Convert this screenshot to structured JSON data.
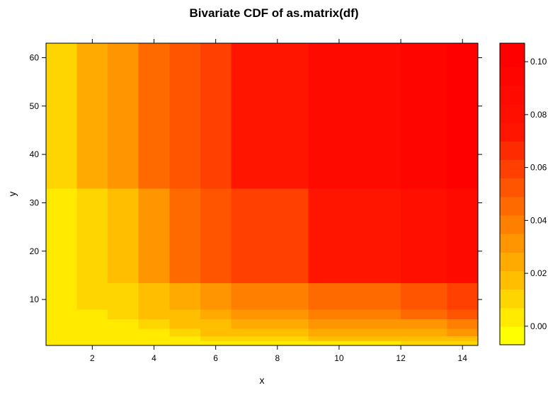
{
  "chart_data": {
    "type": "heatmap",
    "title": "Bivariate CDF of as.matrix(df)",
    "xlabel": "x",
    "ylabel": "y",
    "xlim": [
      0.5,
      14.5
    ],
    "ylim": [
      0.5,
      63
    ],
    "x_ticks": [
      2,
      4,
      6,
      8,
      10,
      12,
      14
    ],
    "y_ticks": [
      10,
      20,
      30,
      40,
      50,
      60
    ],
    "x_breaks": [
      0.5,
      1.5,
      2.5,
      3.5,
      4.5,
      5.5,
      6.5,
      9,
      12,
      13.5,
      14.5
    ],
    "y_breaks": [
      0.5,
      1.5,
      2.5,
      4,
      6,
      8,
      13.5,
      33,
      63
    ],
    "values": [
      [
        0.0,
        0.0,
        0.0,
        0.0,
        0.0,
        0.002,
        0.004,
        0.006,
        0.008,
        0.01
      ],
      [
        0.0,
        0.0,
        0.0,
        0.0,
        0.004,
        0.008,
        0.012,
        0.014,
        0.016,
        0.02
      ],
      [
        0.0,
        0.0,
        0.0,
        0.004,
        0.008,
        0.014,
        0.018,
        0.022,
        0.026,
        0.03
      ],
      [
        0.0,
        0.0,
        0.0,
        0.008,
        0.014,
        0.02,
        0.026,
        0.03,
        0.034,
        0.04
      ],
      [
        0.0,
        0.0,
        0.008,
        0.014,
        0.02,
        0.026,
        0.032,
        0.036,
        0.042,
        0.05
      ],
      [
        0.0,
        0.008,
        0.012,
        0.018,
        0.026,
        0.032,
        0.038,
        0.044,
        0.05,
        0.058
      ],
      [
        0.0,
        0.012,
        0.02,
        0.032,
        0.044,
        0.05,
        0.062,
        0.07,
        0.078,
        0.086
      ],
      [
        0.012,
        0.022,
        0.034,
        0.042,
        0.05,
        0.062,
        0.074,
        0.086,
        0.094,
        0.104
      ]
    ],
    "colorbar": {
      "breaks": [
        -0.007,
        0.0,
        0.007,
        0.014,
        0.021,
        0.028,
        0.035,
        0.042,
        0.049,
        0.056,
        0.063,
        0.07,
        0.077,
        0.084,
        0.091,
        0.098,
        0.107
      ],
      "colors": [
        "#FFFF00",
        "#FFEA00",
        "#FFD500",
        "#FFBF00",
        "#FFAA00",
        "#FF9500",
        "#FF8000",
        "#FF6A00",
        "#FF5500",
        "#FF4000",
        "#FF2B00",
        "#FF1500",
        "#FF0F00",
        "#FF0A00",
        "#FF0500",
        "#FF0000"
      ],
      "ticks": [
        0.0,
        0.02,
        0.04,
        0.06,
        0.08,
        0.1
      ],
      "tick_labels": [
        "0.00",
        "0.02",
        "0.04",
        "0.06",
        "0.08",
        "0.10"
      ]
    }
  }
}
